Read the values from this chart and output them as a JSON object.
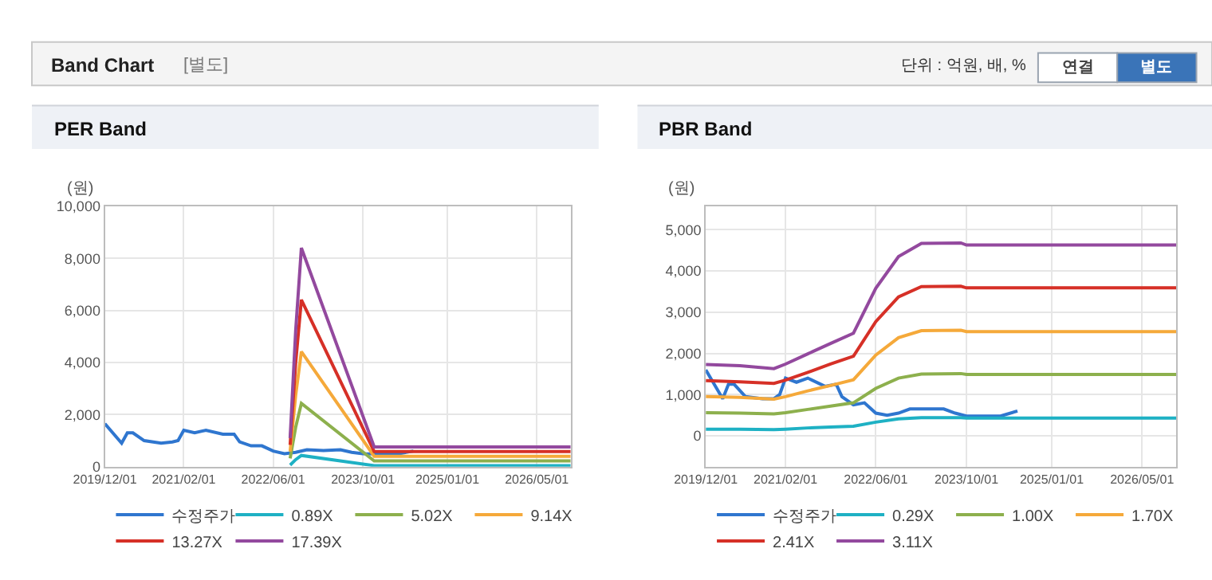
{
  "chart_data": [
    {
      "type": "other",
      "title": "Band Chart",
      "subtitle": "[별도]",
      "annotations": [
        "단위 : 억원, 배, %",
        "연결",
        "별도"
      ]
    },
    {
      "type": "line",
      "title": "PER Band",
      "ylabel": "(원)",
      "grid": true,
      "legend": "bottom",
      "marker": "none",
      "line_style": "solid",
      "xlim": [
        "2019-12-01",
        "2026-11-01"
      ],
      "xticks": [
        {
          "value": "2019-12-01",
          "label": "2019/12/01"
        },
        {
          "value": "2021-02-01",
          "label": "2021/02/01"
        },
        {
          "value": "2022-06-01",
          "label": "2022/06/01"
        },
        {
          "value": "2023-10-01",
          "label": "2023/10/01"
        },
        {
          "value": "2025-01-01",
          "label": "2025/01/01"
        },
        {
          "value": "2026-05-01",
          "label": "2026/05/01"
        }
      ],
      "ylim": [
        0,
        10000
      ],
      "yticks": [
        0,
        {
          "value": 2000,
          "label": "2,000"
        },
        {
          "value": 4000,
          "label": "4,000"
        },
        {
          "value": 6000,
          "label": "6,000"
        },
        {
          "value": 8000,
          "label": "8,000"
        },
        {
          "value": 10000,
          "label": "10,000"
        }
      ],
      "series": [
        {
          "name": "수정주가",
          "color": "#2f76cf",
          "x": [
            "2019-12",
            "2020-03",
            "2020-04",
            "2020-05",
            "2020-07",
            "2020-10",
            "2020-12",
            "2021-01",
            "2021-02",
            "2021-04",
            "2021-06",
            "2021-09",
            "2021-11",
            "2021-12",
            "2022-02",
            "2022-04",
            "2022-06",
            "2022-08",
            "2022-10",
            "2022-12",
            "2023-03",
            "2023-06",
            "2023-08",
            "2023-10",
            "2024-04",
            "2024-07"
          ],
          "values": [
            1650,
            900,
            1300,
            1300,
            1000,
            900,
            950,
            1000,
            1400,
            1300,
            1400,
            1250,
            1250,
            950,
            800,
            800,
            600,
            500,
            550,
            650,
            620,
            650,
            550,
            500,
            480,
            600
          ]
        },
        {
          "name": "0.89X",
          "color": "#1eb1c4",
          "x": [
            "2022-09",
            "2022-10",
            "2022-11",
            "2023-12",
            "2026-11"
          ],
          "values": [
            60,
            270,
            430,
            40,
            40
          ]
        },
        {
          "name": "5.02X",
          "color": "#8db04d",
          "x": [
            "2022-09",
            "2022-10",
            "2022-11",
            "2023-12",
            "2026-11"
          ],
          "values": [
            320,
            1510,
            2430,
            220,
            220
          ]
        },
        {
          "name": "9.14X",
          "color": "#f5a93a",
          "x": [
            "2022-09",
            "2022-10",
            "2022-11",
            "2023-12",
            "2026-11"
          ],
          "values": [
            580,
            2740,
            4420,
            400,
            400
          ]
        },
        {
          "name": "13.27X",
          "color": "#d63027",
          "x": [
            "2022-09",
            "2022-10",
            "2022-11",
            "2023-12",
            "2026-11"
          ],
          "values": [
            840,
            3980,
            6410,
            580,
            580
          ]
        },
        {
          "name": "17.39X",
          "color": "#93499e",
          "x": [
            "2022-09",
            "2022-10",
            "2022-11",
            "2023-12",
            "2026-11"
          ],
          "values": [
            1100,
            5220,
            8400,
            760,
            760
          ]
        }
      ]
    },
    {
      "type": "line",
      "title": "PBR Band",
      "ylabel": "(원)",
      "grid": true,
      "legend": "bottom",
      "marker": "none",
      "line_style": "solid",
      "xlim": [
        "2019-12-01",
        "2026-11-01"
      ],
      "xticks": [
        {
          "value": "2019-12-01",
          "label": "2019/12/01"
        },
        {
          "value": "2021-02-01",
          "label": "2021/02/01"
        },
        {
          "value": "2022-06-01",
          "label": "2022/06/01"
        },
        {
          "value": "2023-10-01",
          "label": "2023/10/01"
        },
        {
          "value": "2025-01-01",
          "label": "2025/01/01"
        },
        {
          "value": "2026-05-01",
          "label": "2026/05/01"
        }
      ],
      "ylim": [
        -750,
        5570
      ],
      "yticks": [
        0,
        {
          "value": 1000,
          "label": "1,000"
        },
        {
          "value": 2000,
          "label": "2,000"
        },
        {
          "value": 3000,
          "label": "3,000"
        },
        {
          "value": 4000,
          "label": "4,000"
        },
        {
          "value": 5000,
          "label": "5,000"
        }
      ],
      "series": [
        {
          "name": "수정주가",
          "color": "#2f76cf",
          "x": [
            "2019-12",
            "2020-03",
            "2020-04",
            "2020-05",
            "2020-07",
            "2020-10",
            "2020-12",
            "2021-01",
            "2021-02",
            "2021-04",
            "2021-06",
            "2021-09",
            "2021-11",
            "2021-12",
            "2022-02",
            "2022-04",
            "2022-06",
            "2022-08",
            "2022-10",
            "2022-12",
            "2023-03",
            "2023-06",
            "2023-08",
            "2023-10",
            "2024-04",
            "2024-07"
          ],
          "values": [
            1600,
            900,
            1250,
            1250,
            950,
            900,
            900,
            1000,
            1400,
            1300,
            1400,
            1200,
            1250,
            950,
            750,
            800,
            550,
            500,
            550,
            650,
            650,
            650,
            550,
            480,
            480,
            600
          ]
        },
        {
          "name": "0.29X",
          "color": "#1eb1c4",
          "x": [
            "2019-12",
            "2020-06",
            "2020-12",
            "2021-02",
            "2021-06",
            "2021-10",
            "2022-02",
            "2022-06",
            "2022-10",
            "2023-02",
            "2023-09",
            "2023-10",
            "2026-11"
          ],
          "values": [
            160,
            160,
            150,
            160,
            190,
            210,
            230,
            330,
            410,
            440,
            440,
            430,
            430
          ]
        },
        {
          "name": "1.00X",
          "color": "#8db04d",
          "x": [
            "2019-12",
            "2020-06",
            "2020-12",
            "2021-02",
            "2021-06",
            "2021-10",
            "2022-02",
            "2022-06",
            "2022-10",
            "2023-02",
            "2023-09",
            "2023-10",
            "2026-11"
          ],
          "values": [
            560,
            550,
            530,
            560,
            640,
            720,
            800,
            1150,
            1400,
            1500,
            1510,
            1490,
            1490
          ]
        },
        {
          "name": "1.70X",
          "color": "#f5a93a",
          "x": [
            "2019-12",
            "2020-06",
            "2020-12",
            "2021-02",
            "2021-06",
            "2021-10",
            "2022-02",
            "2022-06",
            "2022-10",
            "2023-02",
            "2023-09",
            "2023-10",
            "2026-11"
          ],
          "values": [
            950,
            930,
            890,
            950,
            1090,
            1220,
            1360,
            1960,
            2380,
            2550,
            2560,
            2530,
            2530
          ]
        },
        {
          "name": "2.41X",
          "color": "#d63027",
          "x": [
            "2019-12",
            "2020-06",
            "2020-12",
            "2021-02",
            "2021-06",
            "2021-10",
            "2022-02",
            "2022-06",
            "2022-10",
            "2023-02",
            "2023-09",
            "2023-10",
            "2026-11"
          ],
          "values": [
            1340,
            1310,
            1270,
            1350,
            1540,
            1740,
            1930,
            2770,
            3370,
            3620,
            3630,
            3590,
            3590
          ]
        },
        {
          "name": "3.11X",
          "color": "#93499e",
          "x": [
            "2019-12",
            "2020-06",
            "2020-12",
            "2021-02",
            "2021-06",
            "2021-10",
            "2022-02",
            "2022-06",
            "2022-10",
            "2023-02",
            "2023-09",
            "2023-10",
            "2026-11"
          ],
          "values": [
            1730,
            1700,
            1630,
            1740,
            1990,
            2240,
            2490,
            3580,
            4350,
            4670,
            4680,
            4630,
            4630
          ]
        }
      ]
    }
  ]
}
